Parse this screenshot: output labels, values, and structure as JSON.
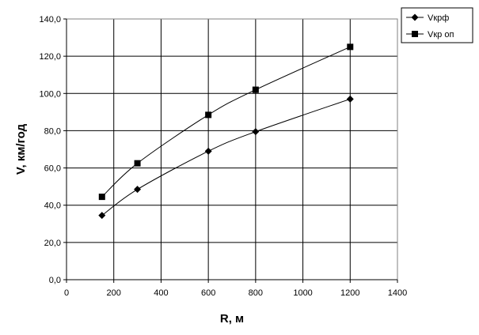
{
  "chart_data": {
    "type": "line",
    "xlabel": "R, м",
    "ylabel": "V, км/год",
    "xlim": [
      0,
      1400
    ],
    "ylim": [
      0,
      140
    ],
    "x_ticks": [
      0,
      200,
      400,
      600,
      800,
      1000,
      1200,
      1400
    ],
    "x_tick_labels": [
      "0",
      "200",
      "400",
      "600",
      "800",
      "1000",
      "1200",
      "1400"
    ],
    "y_ticks": [
      0,
      20,
      40,
      60,
      80,
      100,
      120,
      140
    ],
    "y_tick_labels": [
      "0,0",
      "20,0",
      "40,0",
      "60,0",
      "80,0",
      "100,0",
      "120,0",
      "140,0"
    ],
    "grid": true,
    "legend_position": "top-right",
    "series": [
      {
        "name": "Vкрф",
        "marker": "diamond",
        "color": "#000000",
        "x": [
          150,
          300,
          600,
          800,
          1200
        ],
        "y": [
          34.5,
          48.5,
          69,
          79.5,
          97
        ]
      },
      {
        "name": "Vкр оп",
        "marker": "square",
        "color": "#000000",
        "x": [
          150,
          300,
          600,
          800,
          1200
        ],
        "y": [
          44.5,
          62.5,
          88.5,
          102,
          125
        ]
      }
    ]
  }
}
